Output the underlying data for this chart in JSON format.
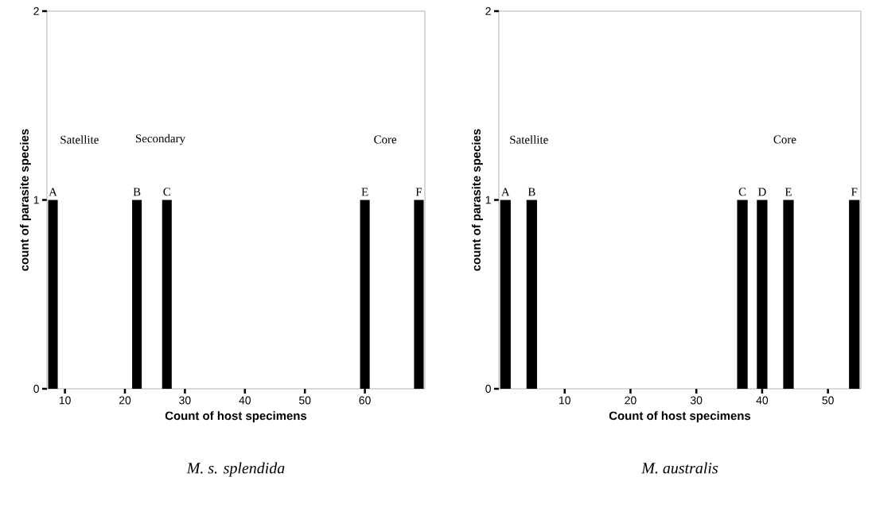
{
  "chart_data": [
    {
      "type": "bar",
      "title": "M. s. splendida",
      "xlabel": "Count of host specimens",
      "ylabel": "count of parasite species",
      "x": [
        8,
        22,
        27,
        60,
        69
      ],
      "values": [
        1,
        1,
        1,
        1,
        1
      ],
      "color": "#000000",
      "xlim": [
        7,
        70
      ],
      "ylim": [
        0,
        2
      ],
      "xticks": [
        10,
        20,
        30,
        40,
        50,
        60
      ],
      "yticks": [
        0,
        1,
        2
      ],
      "annotations": [
        "Satellite",
        "Secondary",
        "Core",
        {
          "text": "A",
          "x": 8,
          "y": 1
        },
        {
          "text": "B",
          "x": 22,
          "y": 1
        },
        {
          "text": "C",
          "x": 27,
          "y": 1
        },
        {
          "text": "E",
          "x": 60,
          "y": 1
        },
        {
          "text": "F",
          "x": 69,
          "y": 1
        }
      ]
    },
    {
      "type": "bar",
      "title": "M. australis",
      "xlabel": "Count of host specimens",
      "ylabel": "count of parasite species",
      "x": [
        1,
        5,
        37,
        40,
        44,
        54
      ],
      "values": [
        1,
        1,
        1,
        1,
        1,
        1
      ],
      "color": "#000000",
      "xlim": [
        0,
        55
      ],
      "ylim": [
        0,
        2
      ],
      "xticks": [
        10,
        20,
        30,
        40,
        50
      ],
      "yticks": [
        0,
        1,
        2
      ],
      "annotations": [
        "Satellite",
        "Core",
        {
          "text": "A",
          "x": 1,
          "y": 1
        },
        {
          "text": "B",
          "x": 5,
          "y": 1
        },
        {
          "text": "C",
          "x": 37,
          "y": 1
        },
        {
          "text": "D",
          "x": 40,
          "y": 1
        },
        {
          "text": "E",
          "x": 44,
          "y": 1
        },
        {
          "text": "F",
          "x": 54,
          "y": 1
        }
      ]
    }
  ]
}
